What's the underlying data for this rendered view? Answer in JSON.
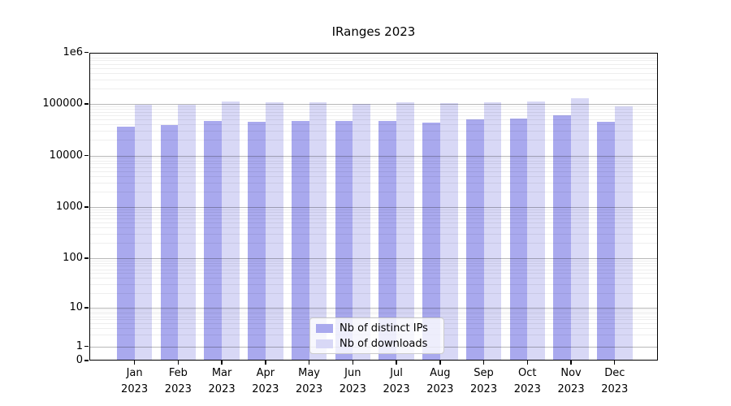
{
  "title": "IRanges 2023",
  "chart_data": {
    "type": "bar",
    "title": "IRanges 2023",
    "categories": [
      "Jan 2023",
      "Feb 2023",
      "Mar 2023",
      "Apr 2023",
      "May 2023",
      "Jun 2023",
      "Jul 2023",
      "Aug 2023",
      "Sep 2023",
      "Oct 2023",
      "Nov 2023",
      "Dec 2023"
    ],
    "series": [
      {
        "name": "Nb of distinct IPs",
        "color": "#a9a9ee",
        "values": [
          36000,
          39500,
          47500,
          45000,
          47500,
          46500,
          47500,
          43500,
          49500,
          52000,
          61000,
          45000
        ]
      },
      {
        "name": "Nb of downloads",
        "color": "#d8d8f6",
        "values": [
          96000,
          98000,
          110000,
          106000,
          109000,
          99000,
          108000,
          102000,
          106000,
          112000,
          128000,
          90000
        ]
      }
    ],
    "xlabel": "",
    "ylabel": "",
    "yscale": "symlog",
    "ylim": [
      0,
      1000000
    ],
    "y_tick_labels": [
      "0",
      "1",
      "10",
      "100",
      "1000",
      "10000",
      "100000",
      "1e6"
    ],
    "grid": true,
    "legend_position": "lower center"
  }
}
